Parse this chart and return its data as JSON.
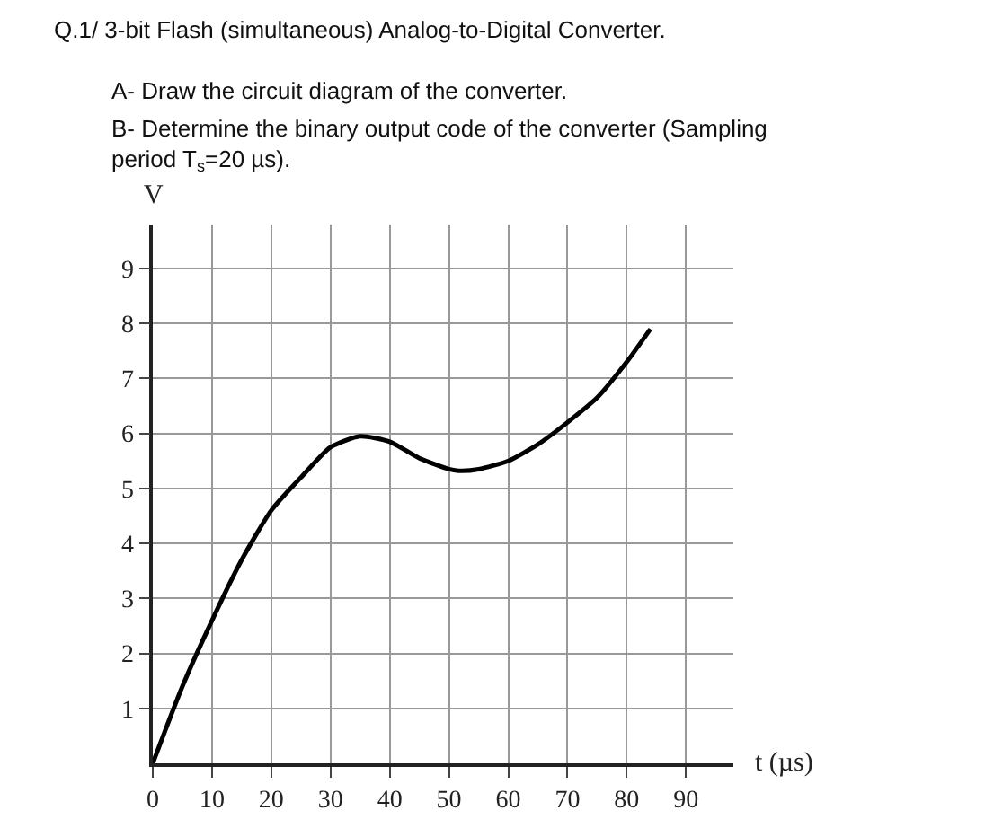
{
  "chart_data": {
    "type": "line",
    "title": "Q.1/ 3-bit Flash (simultaneous) Analog-to-Digital Converter.",
    "annotations": [
      "A- Draw the circuit diagram of the converter.",
      "B- Determine the binary output code of the converter (Sampling period T$_{s}$=20 µs)."
    ],
    "xlabel": "t (µs)",
    "ylabel": "V",
    "x": [
      0,
      5,
      10,
      15,
      20,
      25,
      30,
      35,
      40,
      45,
      50,
      52,
      55,
      60,
      65,
      70,
      75,
      80,
      84
    ],
    "series": [
      {
        "color": "#000000",
        "values": [
          0,
          1.4,
          2.6,
          3.7,
          4.6,
          5.2,
          5.75,
          5.95,
          5.85,
          5.55,
          5.35,
          5.32,
          5.35,
          5.5,
          5.8,
          6.2,
          6.65,
          7.3,
          7.9
        ]
      }
    ],
    "xlim": [
      0,
      98
    ],
    "ylim": [
      0,
      9.8
    ],
    "xticks": [
      0,
      10,
      20,
      30,
      40,
      50,
      60,
      70,
      80,
      90
    ],
    "yticks": [
      1,
      2,
      3,
      4,
      5,
      6,
      7,
      8,
      9
    ],
    "grid": true,
    "line_style": "solid",
    "marker": "none"
  }
}
